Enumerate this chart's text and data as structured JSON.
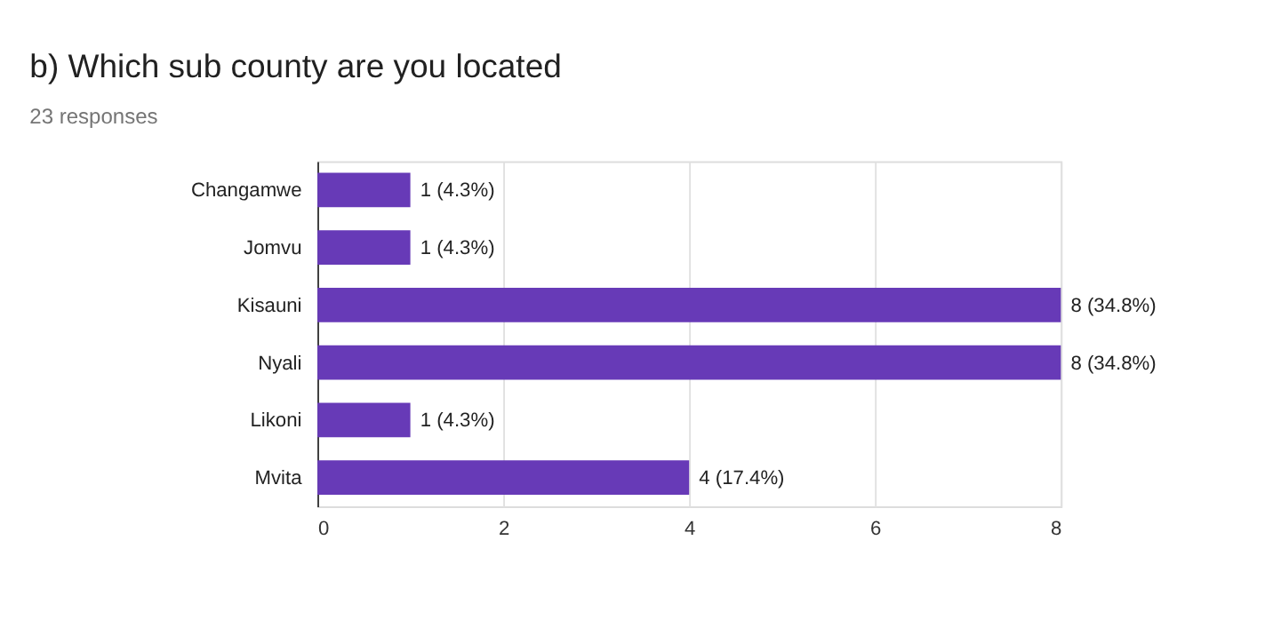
{
  "chart_data": {
    "type": "bar",
    "orientation": "horizontal",
    "title": "b) Which sub county are you located",
    "subtitle": "23 responses",
    "categories": [
      "Changamwe",
      "Jomvu",
      "Kisauni",
      "Nyali",
      "Likoni",
      "Mvita"
    ],
    "values": [
      1,
      1,
      8,
      8,
      1,
      4
    ],
    "value_labels": [
      "1 (4.3%)",
      "1 (4.3%)",
      "8 (34.8%)",
      "8 (34.8%)",
      "1 (4.3%)",
      "4 (17.4%)"
    ],
    "color": "#673ab7",
    "xlim": [
      0,
      8
    ],
    "xticks": [
      0,
      2,
      4,
      6,
      8
    ],
    "grid": "x"
  }
}
